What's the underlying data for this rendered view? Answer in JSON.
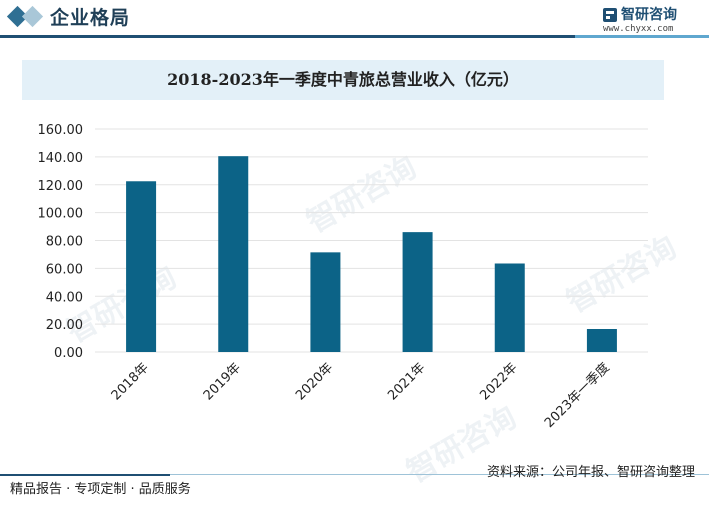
{
  "header": {
    "section_title": "企业格局",
    "brand_name": "智研咨询",
    "brand_url": "www.chyxx.com"
  },
  "watermark": "智研咨询",
  "chart_data": {
    "type": "bar",
    "title": "2018-2023年一季度中青旅总营业收入（亿元）",
    "categories": [
      "2018年",
      "2019年",
      "2020年",
      "2021年",
      "2022年",
      "2023年一季度"
    ],
    "values": [
      122.5,
      140.5,
      71.5,
      86.0,
      63.5,
      16.5
    ],
    "ylim": [
      0,
      160
    ],
    "yticks": [
      "0.00",
      "20.00",
      "40.00",
      "60.00",
      "80.00",
      "100.00",
      "120.00",
      "140.00",
      "160.00"
    ],
    "grid": true,
    "bar_color": "#0c6387",
    "grid_color": "#e3e3e3"
  },
  "footer": {
    "left_text": "精品报告 · 专项定制 · 品质服务",
    "source": "资料来源：公司年报、智研咨询整理"
  }
}
